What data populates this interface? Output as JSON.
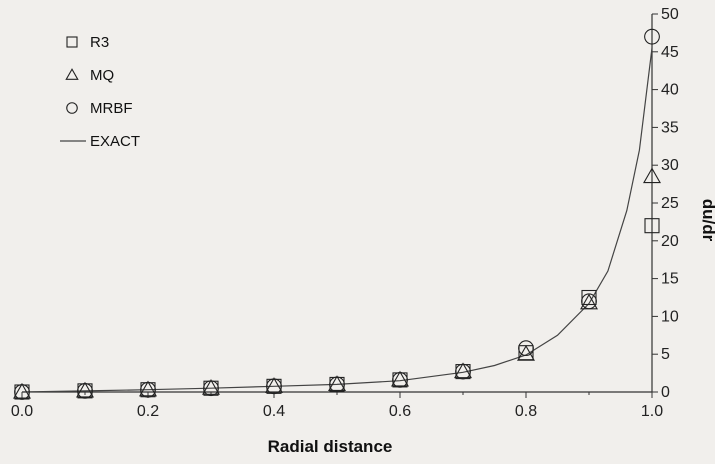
{
  "chart_data": {
    "type": "scatter",
    "xlabel": "Radial distance",
    "ylabel": "du/dr",
    "xlim": [
      0.0,
      1.0
    ],
    "ylim": [
      0,
      50
    ],
    "x_ticks": [
      "0.0",
      "0.2",
      "0.4",
      "0.6",
      "0.8",
      "1.0"
    ],
    "y_ticks": [
      "0",
      "5",
      "10",
      "15",
      "20",
      "25",
      "30",
      "35",
      "40",
      "45",
      "50"
    ],
    "y_axis_side": "right",
    "grid": false,
    "legend_position": "top-left",
    "series": [
      {
        "name": "R3",
        "marker": "square",
        "x": [
          0.0,
          0.1,
          0.2,
          0.3,
          0.4,
          0.5,
          0.6,
          0.7,
          0.8,
          0.9,
          1.0
        ],
        "y": [
          0.0,
          0.15,
          0.3,
          0.5,
          0.75,
          1.0,
          1.6,
          2.7,
          5.2,
          12.5,
          22.0
        ]
      },
      {
        "name": "MQ",
        "marker": "triangle",
        "x": [
          0.0,
          0.1,
          0.2,
          0.3,
          0.4,
          0.5,
          0.6,
          0.7,
          0.8,
          0.9,
          1.0
        ],
        "y": [
          0.0,
          0.15,
          0.3,
          0.5,
          0.75,
          1.0,
          1.6,
          2.7,
          5.0,
          11.8,
          28.5
        ]
      },
      {
        "name": "MRBF",
        "marker": "circle",
        "x": [
          0.0,
          0.1,
          0.2,
          0.3,
          0.4,
          0.5,
          0.6,
          0.7,
          0.8,
          0.9,
          1.0
        ],
        "y": [
          0.0,
          0.15,
          0.3,
          0.5,
          0.75,
          1.0,
          1.6,
          2.7,
          5.8,
          12.0,
          47.0
        ]
      },
      {
        "name": "EXACT",
        "marker": "line",
        "x": [
          0.0,
          0.1,
          0.2,
          0.3,
          0.4,
          0.5,
          0.6,
          0.7,
          0.75,
          0.8,
          0.85,
          0.9,
          0.93,
          0.96,
          0.98,
          1.0
        ],
        "y": [
          0.0,
          0.15,
          0.3,
          0.5,
          0.75,
          1.0,
          1.5,
          2.6,
          3.5,
          4.9,
          7.5,
          11.7,
          16.0,
          24.0,
          32.0,
          45.5
        ]
      }
    ]
  }
}
